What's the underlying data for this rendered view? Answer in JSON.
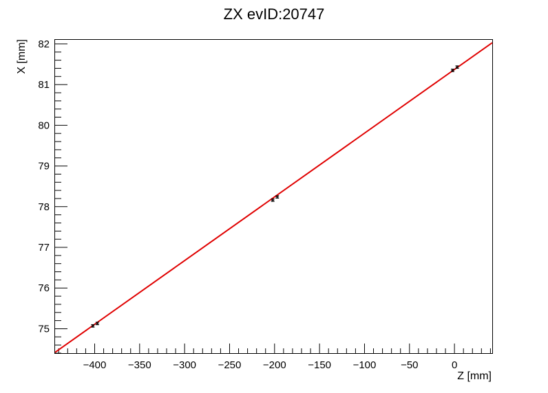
{
  "chart_data": {
    "type": "scatter",
    "title": "ZX evID:20747",
    "xlabel": "Z [mm]",
    "ylabel": "X [mm]",
    "xlim": [
      -444,
      42
    ],
    "ylim": [
      74.4,
      82.1
    ],
    "x_ticks": [
      -400,
      -350,
      -300,
      -250,
      -200,
      -150,
      -100,
      -50,
      0
    ],
    "x_tick_labels": [
      "−400",
      "−350",
      "−300",
      "−250",
      "−200",
      "−150",
      "−100",
      "−50",
      "0"
    ],
    "y_ticks": [
      75,
      76,
      77,
      78,
      79,
      80,
      81,
      82
    ],
    "y_tick_labels": [
      "75",
      "76",
      "77",
      "78",
      "79",
      "80",
      "81",
      "82"
    ],
    "grid": false,
    "series": [
      {
        "kind": "points-with-error-bars",
        "color": "#000000",
        "points": [
          {
            "x": -402,
            "y": 75.07,
            "err": 0.03
          },
          {
            "x": -397,
            "y": 75.13,
            "err": 0.03
          },
          {
            "x": -202,
            "y": 78.16,
            "err": 0.03
          },
          {
            "x": -197,
            "y": 78.24,
            "err": 0.03
          },
          {
            "x": -2,
            "y": 81.35,
            "err": 0.03
          },
          {
            "x": 3,
            "y": 81.43,
            "err": 0.03
          }
        ]
      },
      {
        "kind": "fit-line",
        "color": "#e00000",
        "x": [
          -444,
          42
        ],
        "y": [
          74.42,
          82.03
        ]
      }
    ]
  }
}
